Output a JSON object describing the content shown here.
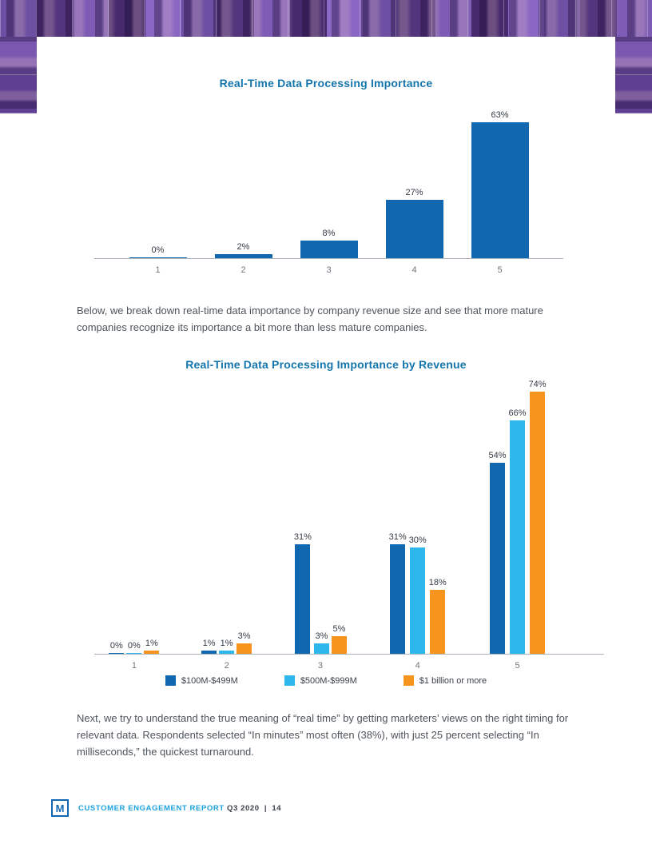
{
  "page": {
    "paragraph1": "Below, we break down real-time data importance by company revenue size and see that more mature companies recognize its importance a bit more than less mature companies.",
    "paragraph2": "Next, we try to understand the true meaning of “real time” by getting marketers’ views on the right timing for relevant data. Respondents selected “In minutes” most often (38%), with just 25 percent selecting “In milliseconds,” the quickest turnaround."
  },
  "chart_data": [
    {
      "type": "bar",
      "title": "Real-Time Data Processing Importance",
      "categories": [
        "1",
        "2",
        "3",
        "4",
        "5"
      ],
      "values": [
        0,
        2,
        8,
        27,
        63
      ],
      "labels": [
        "0%",
        "2%",
        "8%",
        "27%",
        "63%"
      ],
      "bar_color": "#1268b0",
      "value_label_color": "#333b44",
      "axis_color": "#aab3bb",
      "ylim": [
        0,
        70
      ],
      "grid": false,
      "legend": null
    },
    {
      "type": "bar",
      "title": "Real-Time Data Processing Importance by Revenue",
      "categories": [
        "1",
        "2",
        "3",
        "4",
        "5"
      ],
      "series": [
        {
          "name": "$100M-$499M",
          "color": "#1268b0",
          "values": [
            0,
            1,
            31,
            31,
            54
          ],
          "labels": [
            "0%",
            "1%",
            "31%",
            "31%",
            "54%"
          ]
        },
        {
          "name": "$500M-$999M",
          "color": "#2eb7ea",
          "values": [
            0,
            1,
            3,
            30,
            66
          ],
          "labels": [
            "0%",
            "1%",
            "3%",
            "30%",
            "66%"
          ]
        },
        {
          "name": "$1 billion or more",
          "color": "#f7941e",
          "values": [
            1,
            3,
            5,
            18,
            74
          ],
          "labels": [
            "1%",
            "3%",
            "5%",
            "18%",
            "74%"
          ]
        }
      ],
      "ylim": [
        0,
        80
      ],
      "grid": false,
      "legend_position": "bottom"
    }
  ],
  "footer": {
    "logo_letter": "M",
    "report_label": "CUSTOMER ENGAGEMENT REPORT",
    "issue_label": "Q3 2020",
    "separator": "|",
    "page_number": "14"
  },
  "colors": {
    "title_blue": "#1475ad",
    "footer_blue": "#1ca2dd",
    "body_text": "#4d545b",
    "banner_purple": "#5e3f92"
  }
}
